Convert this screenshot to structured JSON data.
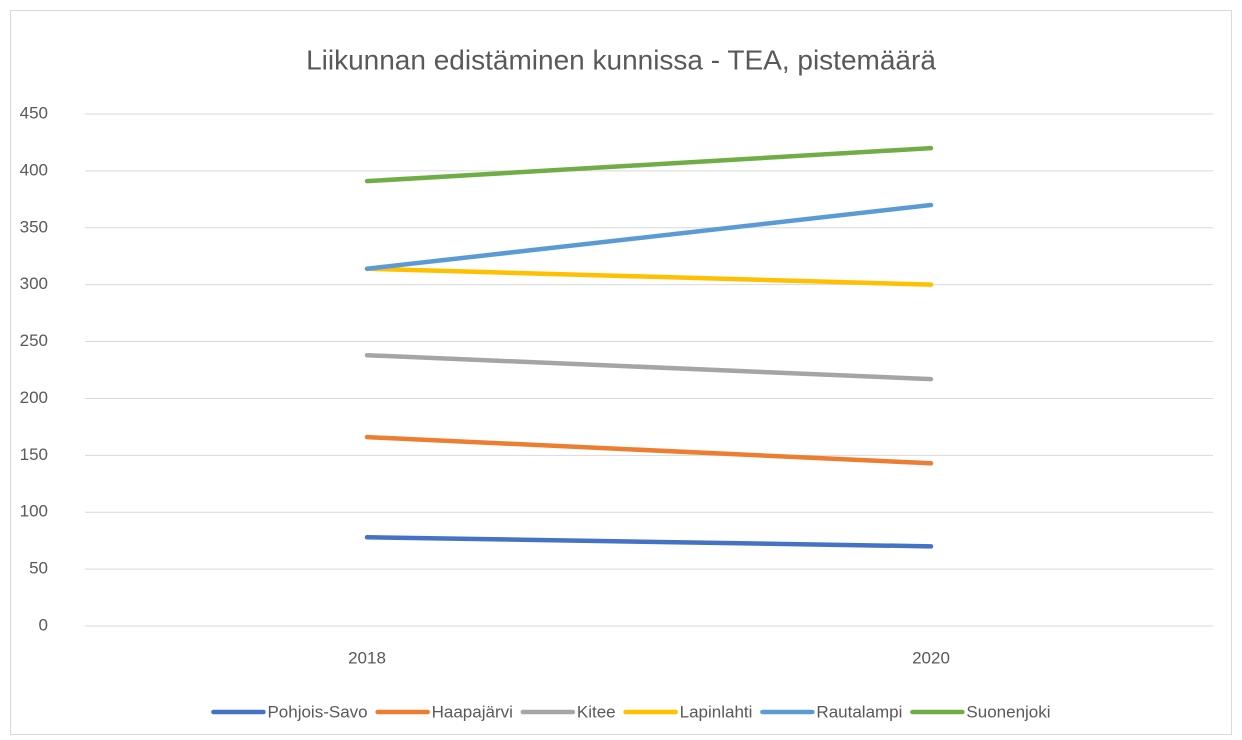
{
  "chart_data": {
    "type": "line",
    "title": "Liikunnan edistäminen kunnissa - TEA, pistemäärä",
    "categories": [
      "2018",
      "2020"
    ],
    "series": [
      {
        "name": "Pohjois-Savo",
        "color": "#4472c4",
        "values": [
          78,
          70
        ]
      },
      {
        "name": "Haapajärvi",
        "color": "#ed7d31",
        "values": [
          166,
          143
        ]
      },
      {
        "name": "Kitee",
        "color": "#a5a5a5",
        "values": [
          238,
          217
        ]
      },
      {
        "name": "Lapinlahti",
        "color": "#ffc000",
        "values": [
          314,
          300
        ]
      },
      {
        "name": "Rautalampi",
        "color": "#5b9bd5",
        "values": [
          314,
          370
        ]
      },
      {
        "name": "Suonenjoki",
        "color": "#70ad47",
        "values": [
          391,
          420
        ]
      }
    ],
    "ylim": [
      0,
      450
    ],
    "yticks": [
      0,
      50,
      100,
      150,
      200,
      250,
      300,
      350,
      400,
      450
    ],
    "grid": true,
    "legend": "bottom"
  }
}
